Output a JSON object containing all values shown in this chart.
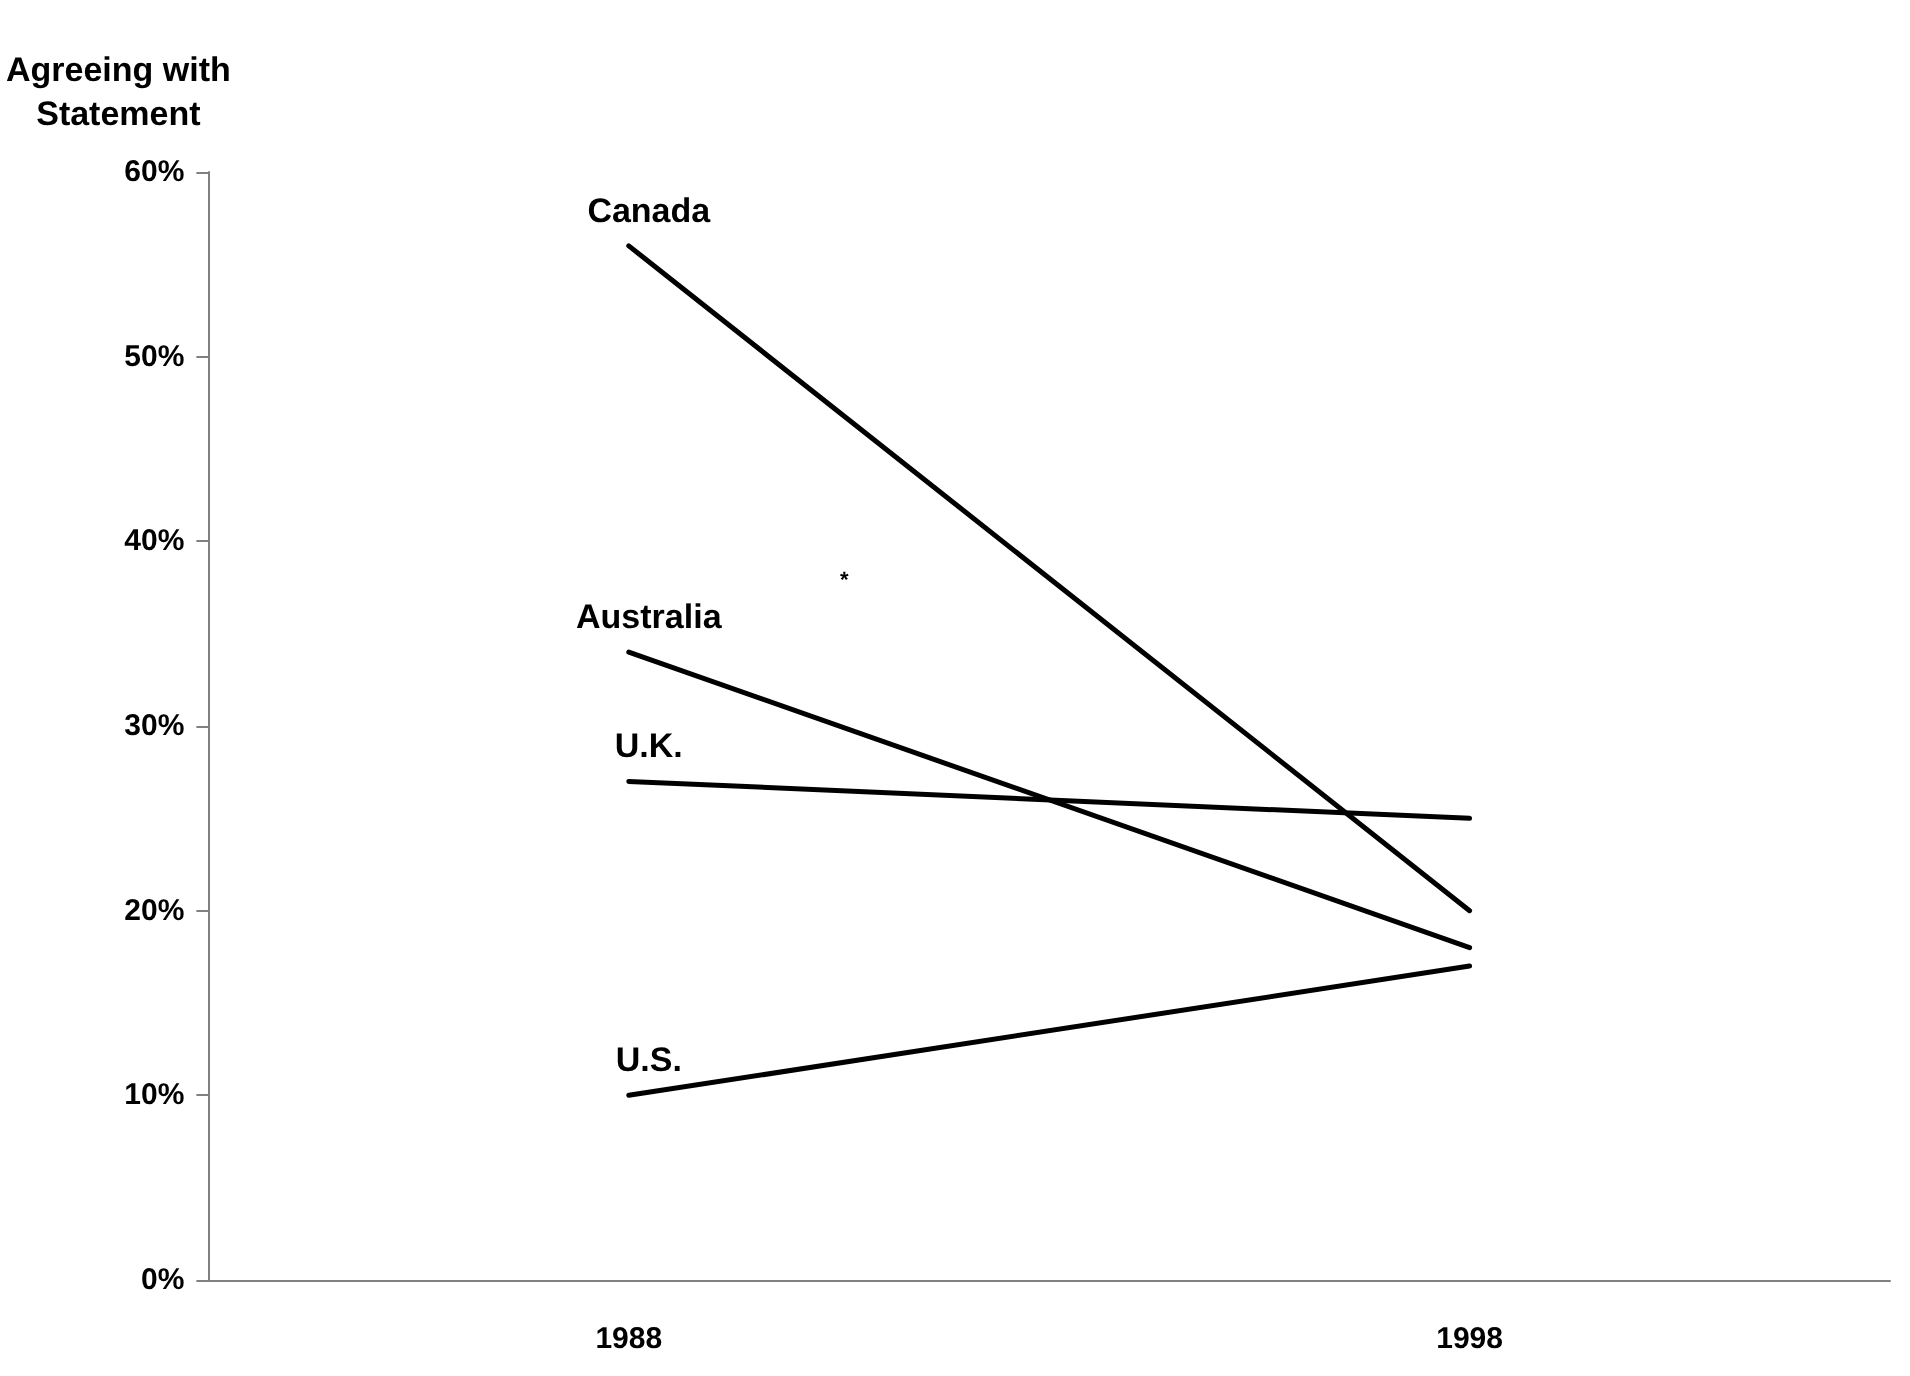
{
  "chart_data": {
    "type": "line",
    "ylabel": "Agreeing with\nStatement",
    "categories": [
      "1988",
      "1998"
    ],
    "series": [
      {
        "name": "Canada",
        "color": "#000000",
        "values": [
          56,
          20
        ]
      },
      {
        "name": "Australia",
        "color": "#000000",
        "values": [
          34,
          18
        ]
      },
      {
        "name": "U.K.",
        "color": "#000000",
        "values": [
          27,
          25
        ]
      },
      {
        "name": "U.S.",
        "color": "#000000",
        "values": [
          10,
          17
        ]
      }
    ],
    "annotations": [
      "*"
    ],
    "ylim": [
      0,
      60
    ],
    "yticks": [
      {
        "value": 0,
        "label": "0%"
      },
      {
        "value": 10,
        "label": "10%"
      },
      {
        "value": 20,
        "label": "20%"
      },
      {
        "value": 30,
        "label": "30%"
      },
      {
        "value": 40,
        "label": "40%"
      },
      {
        "value": 50,
        "label": "50%"
      },
      {
        "value": 60,
        "label": "60%"
      }
    ],
    "grid": false,
    "legend": false,
    "marker": "none",
    "line_style": "solid"
  }
}
